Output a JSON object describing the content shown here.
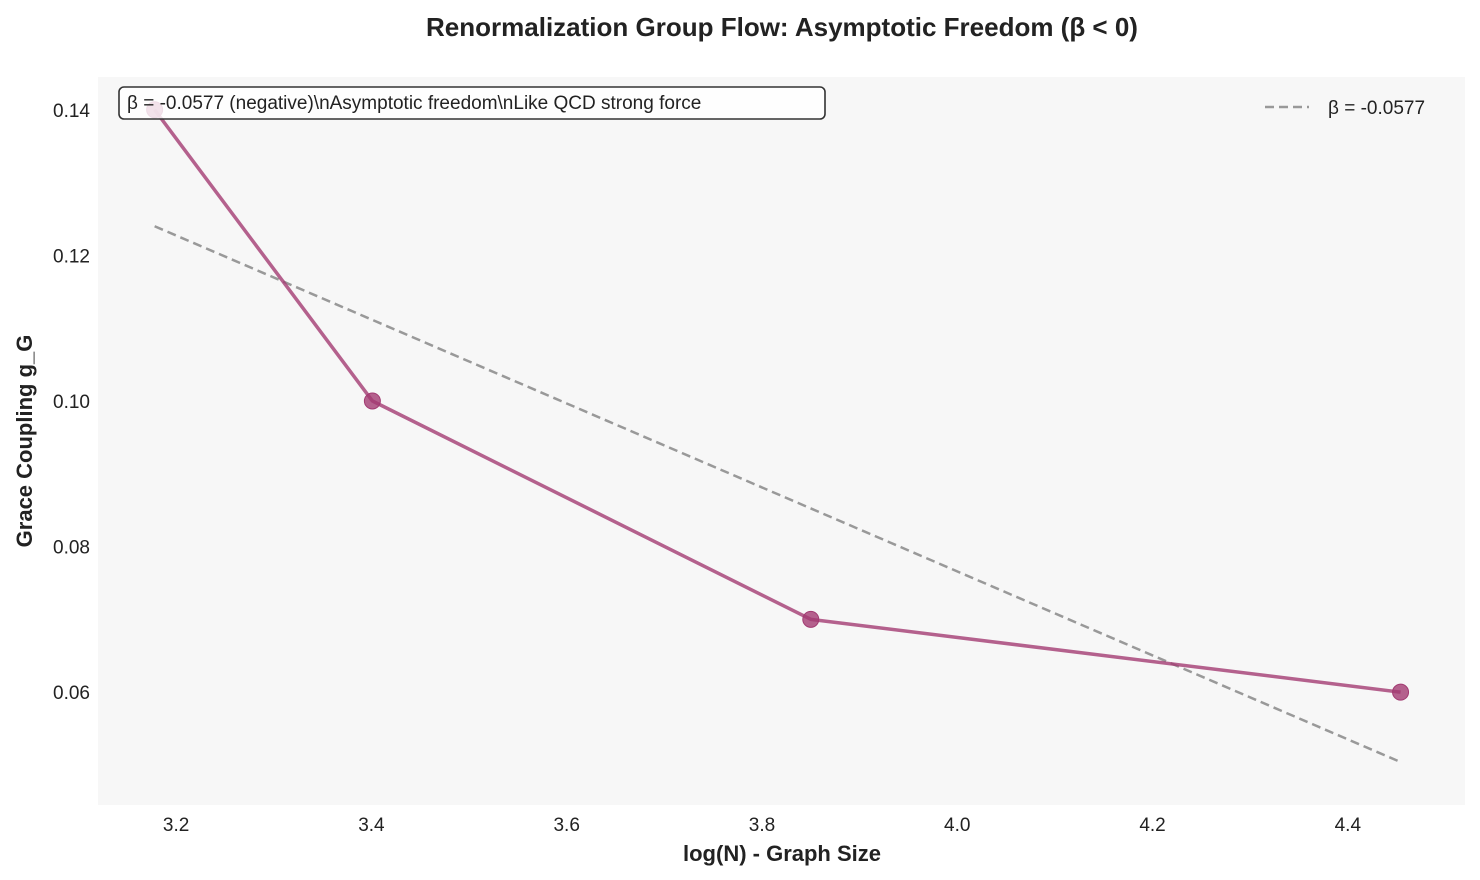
{
  "chart_data": {
    "type": "line",
    "title": "Renormalization Group Flow: Asymptotic Freedom (β < 0)",
    "xlabel": "log(N) - Graph Size",
    "ylabel": "Grace Coupling g_G",
    "xlim": [
      3.12,
      4.52
    ],
    "ylim": [
      0.0445,
      0.1445
    ],
    "x_ticks": [
      3.2,
      3.4,
      3.6,
      3.8,
      4.0,
      4.2,
      4.4
    ],
    "x_tick_labels": [
      "3.2",
      "3.4",
      "3.6",
      "3.8",
      "4.0",
      "4.2",
      "4.4"
    ],
    "y_ticks": [
      0.06,
      0.08,
      0.1,
      0.12,
      0.14
    ],
    "y_tick_labels": [
      "0.06",
      "0.08",
      "0.10",
      "0.12",
      "0.14"
    ],
    "grid": false,
    "background": "#f7f7f7",
    "series": [
      {
        "x": [
          3.178,
          3.401,
          3.85,
          4.454
        ],
        "y": [
          0.14,
          0.1,
          0.07,
          0.06
        ],
        "color": "#a23b72",
        "marker": "circle"
      },
      {
        "name": "β = -0.0577",
        "x": [
          3.178,
          4.454
        ],
        "y": [
          0.124,
          0.0504
        ],
        "color": "#999999",
        "style": "dashed"
      }
    ],
    "legend": {
      "position": "top-right",
      "entries": [
        "β = -0.0577"
      ]
    },
    "annotation": {
      "text": "β = -0.0577 (negative)\\nAsymptotic freedom\\nLike QCD strong force",
      "position": "top-left"
    }
  }
}
